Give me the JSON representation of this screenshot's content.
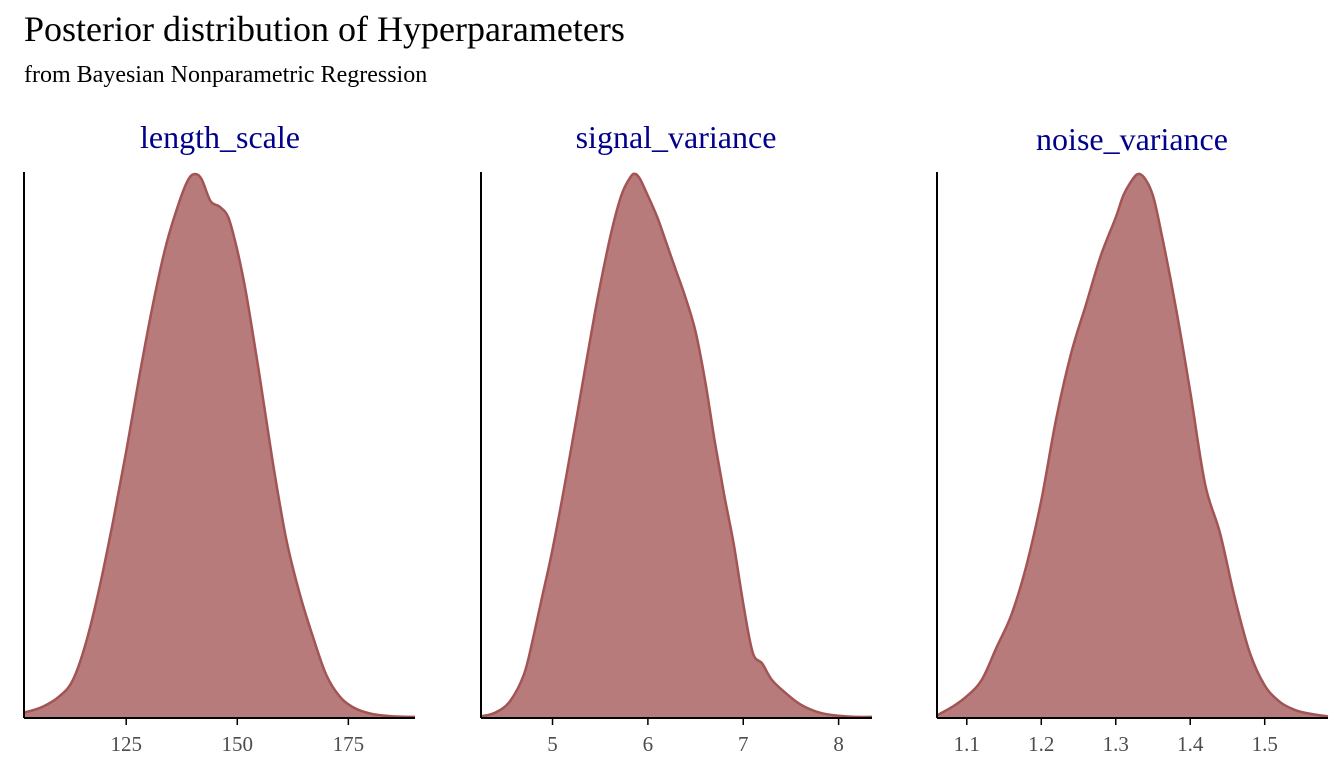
{
  "title": "Posterior distribution of Hyperparameters",
  "subtitle": "from Bayesian Nonparametric Regression",
  "style": {
    "fill_color": "#b77b7b",
    "line_color": "#a35454",
    "strip_text_color": "#00008b",
    "axis_color": "#000000",
    "tick_text_color": "#4d4d4d"
  },
  "chart_data": [
    {
      "type": "area",
      "panel_title": "length_scale",
      "xlim": [
        102,
        190
      ],
      "ylim": [
        0,
        1
      ],
      "ticks": [
        125,
        150,
        175
      ],
      "tick_labels": [
        "125",
        "150",
        "175"
      ],
      "x": [
        102,
        106,
        110,
        113,
        116,
        119,
        122,
        125,
        128,
        131,
        134,
        137,
        139,
        140.5,
        142,
        144,
        146,
        148,
        150,
        152,
        155,
        158,
        161,
        164,
        167,
        170,
        173,
        176,
        180,
        185,
        190
      ],
      "y": [
        0.01,
        0.02,
        0.04,
        0.07,
        0.14,
        0.24,
        0.36,
        0.49,
        0.63,
        0.76,
        0.87,
        0.95,
        0.99,
        1.0,
        0.99,
        0.95,
        0.94,
        0.92,
        0.86,
        0.78,
        0.63,
        0.47,
        0.33,
        0.23,
        0.15,
        0.08,
        0.04,
        0.02,
        0.008,
        0.003,
        0.002
      ]
    },
    {
      "type": "area",
      "panel_title": "signal_variance",
      "xlim": [
        4.25,
        8.35
      ],
      "ylim": [
        0,
        1
      ],
      "ticks": [
        5,
        6,
        7,
        8
      ],
      "tick_labels": [
        "5",
        "6",
        "7",
        "8"
      ],
      "x": [
        4.25,
        4.4,
        4.55,
        4.7,
        4.8,
        4.9,
        5.0,
        5.15,
        5.3,
        5.45,
        5.6,
        5.72,
        5.82,
        5.87,
        5.92,
        6.0,
        6.1,
        6.2,
        6.3,
        6.4,
        6.5,
        6.6,
        6.7,
        6.8,
        6.9,
        7.0,
        7.1,
        7.2,
        7.3,
        7.45,
        7.6,
        7.8,
        8.0,
        8.2,
        8.35
      ],
      "y": [
        0.003,
        0.01,
        0.03,
        0.08,
        0.15,
        0.23,
        0.31,
        0.45,
        0.6,
        0.75,
        0.88,
        0.96,
        0.995,
        1.0,
        0.99,
        0.96,
        0.92,
        0.87,
        0.82,
        0.77,
        0.71,
        0.62,
        0.51,
        0.41,
        0.32,
        0.21,
        0.12,
        0.1,
        0.07,
        0.045,
        0.025,
        0.01,
        0.004,
        0.002,
        0.002
      ]
    },
    {
      "type": "area",
      "panel_title": "noise_variance",
      "xlim": [
        1.06,
        1.585
      ],
      "ylim": [
        0,
        1
      ],
      "ticks": [
        1.1,
        1.2,
        1.3,
        1.4,
        1.5
      ],
      "tick_labels": [
        "1.1",
        "1.2",
        "1.3",
        "1.4",
        "1.5"
      ],
      "x": [
        1.06,
        1.08,
        1.1,
        1.12,
        1.14,
        1.16,
        1.18,
        1.2,
        1.22,
        1.24,
        1.26,
        1.28,
        1.3,
        1.31,
        1.32,
        1.33,
        1.34,
        1.35,
        1.36,
        1.38,
        1.4,
        1.42,
        1.44,
        1.46,
        1.48,
        1.5,
        1.52,
        1.54,
        1.56,
        1.585
      ],
      "y": [
        0.005,
        0.02,
        0.04,
        0.07,
        0.13,
        0.19,
        0.28,
        0.4,
        0.55,
        0.67,
        0.76,
        0.85,
        0.92,
        0.96,
        0.985,
        1.0,
        0.99,
        0.96,
        0.9,
        0.76,
        0.6,
        0.43,
        0.34,
        0.22,
        0.12,
        0.06,
        0.03,
        0.015,
        0.008,
        0.003
      ]
    }
  ]
}
